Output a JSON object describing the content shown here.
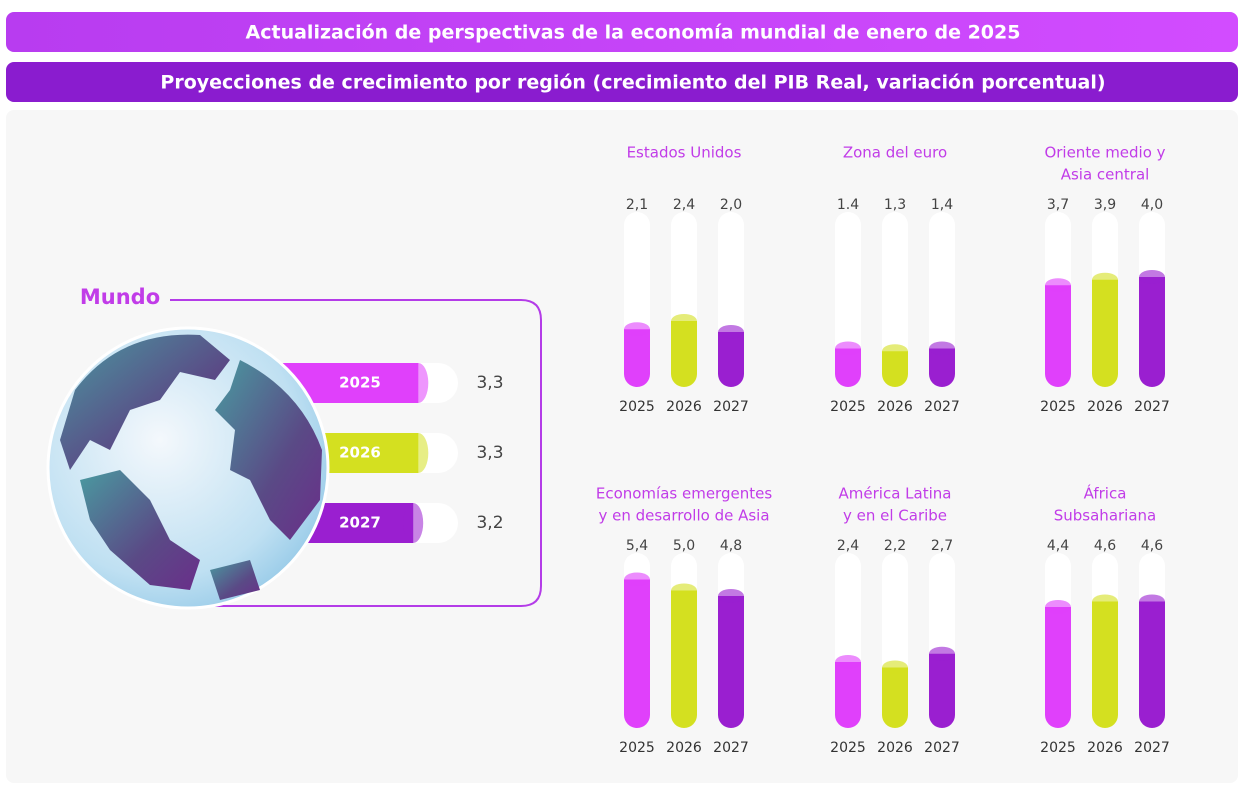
{
  "header": {
    "title": "Actualización de perspectivas de la economía mundial de enero de 2025",
    "subtitle": "Proyecciones de crecimiento por región (crecimiento del PIB Real, variación porcentual)"
  },
  "chart_data": [
    {
      "type": "hbar",
      "title": [
        "Mundo"
      ],
      "categories": [
        "2025",
        "2026",
        "2027"
      ],
      "values": [
        3.3,
        3.3,
        3.2
      ],
      "value_labels": [
        "3,3",
        "3,3",
        "3,2"
      ],
      "colors": [
        "#e040fb",
        "#d4e020",
        "#9a1fd0"
      ],
      "xlim": [
        0,
        3.5
      ]
    },
    {
      "type": "bar",
      "title": [
        "Estados Unidos"
      ],
      "categories": [
        "2025",
        "2026",
        "2027"
      ],
      "values": [
        2.1,
        2.4,
        2.0
      ],
      "value_labels": [
        "2,1",
        "2,4",
        "2,0"
      ],
      "colors": [
        "#e040fb",
        "#d4e020",
        "#9a1fd0"
      ],
      "ylim": [
        0,
        6
      ]
    },
    {
      "type": "bar",
      "title": [
        "Zona del euro"
      ],
      "categories": [
        "2025",
        "2026",
        "2027"
      ],
      "values": [
        1.4,
        1.3,
        1.4
      ],
      "value_labels": [
        "1.4",
        "1,3",
        "1,4"
      ],
      "colors": [
        "#e040fb",
        "#d4e020",
        "#9a1fd0"
      ],
      "ylim": [
        0,
        6
      ]
    },
    {
      "type": "bar",
      "title": [
        "Oriente medio y",
        "Asia central"
      ],
      "categories": [
        "2025",
        "2026",
        "2027"
      ],
      "values": [
        3.7,
        3.9,
        4.0
      ],
      "value_labels": [
        "3,7",
        "3,9",
        "4,0"
      ],
      "colors": [
        "#e040fb",
        "#d4e020",
        "#9a1fd0"
      ],
      "ylim": [
        0,
        6
      ]
    },
    {
      "type": "bar",
      "title": [
        "Economías emergentes",
        "y en desarrollo de Asia"
      ],
      "categories": [
        "2025",
        "2026",
        "2027"
      ],
      "values": [
        5.4,
        5.0,
        4.8
      ],
      "value_labels": [
        "5,4",
        "5,0",
        "4,8"
      ],
      "colors": [
        "#e040fb",
        "#d4e020",
        "#9a1fd0"
      ],
      "ylim": [
        0,
        6
      ]
    },
    {
      "type": "bar",
      "title": [
        "América Latina",
        "y en el Caribe"
      ],
      "categories": [
        "2025",
        "2026",
        "2027"
      ],
      "values": [
        2.4,
        2.2,
        2.7
      ],
      "value_labels": [
        "2,4",
        "2,2",
        "2,7"
      ],
      "colors": [
        "#e040fb",
        "#d4e020",
        "#9a1fd0"
      ],
      "ylim": [
        0,
        6
      ]
    },
    {
      "type": "bar",
      "title": [
        "África",
        "Subsahariana"
      ],
      "categories": [
        "2025",
        "2026",
        "2027"
      ],
      "values": [
        4.4,
        4.6,
        4.6
      ],
      "value_labels": [
        "4,4",
        "4,6",
        "4,6"
      ],
      "colors": [
        "#e040fb",
        "#d4e020",
        "#9a1fd0"
      ],
      "ylim": [
        0,
        6
      ]
    }
  ]
}
